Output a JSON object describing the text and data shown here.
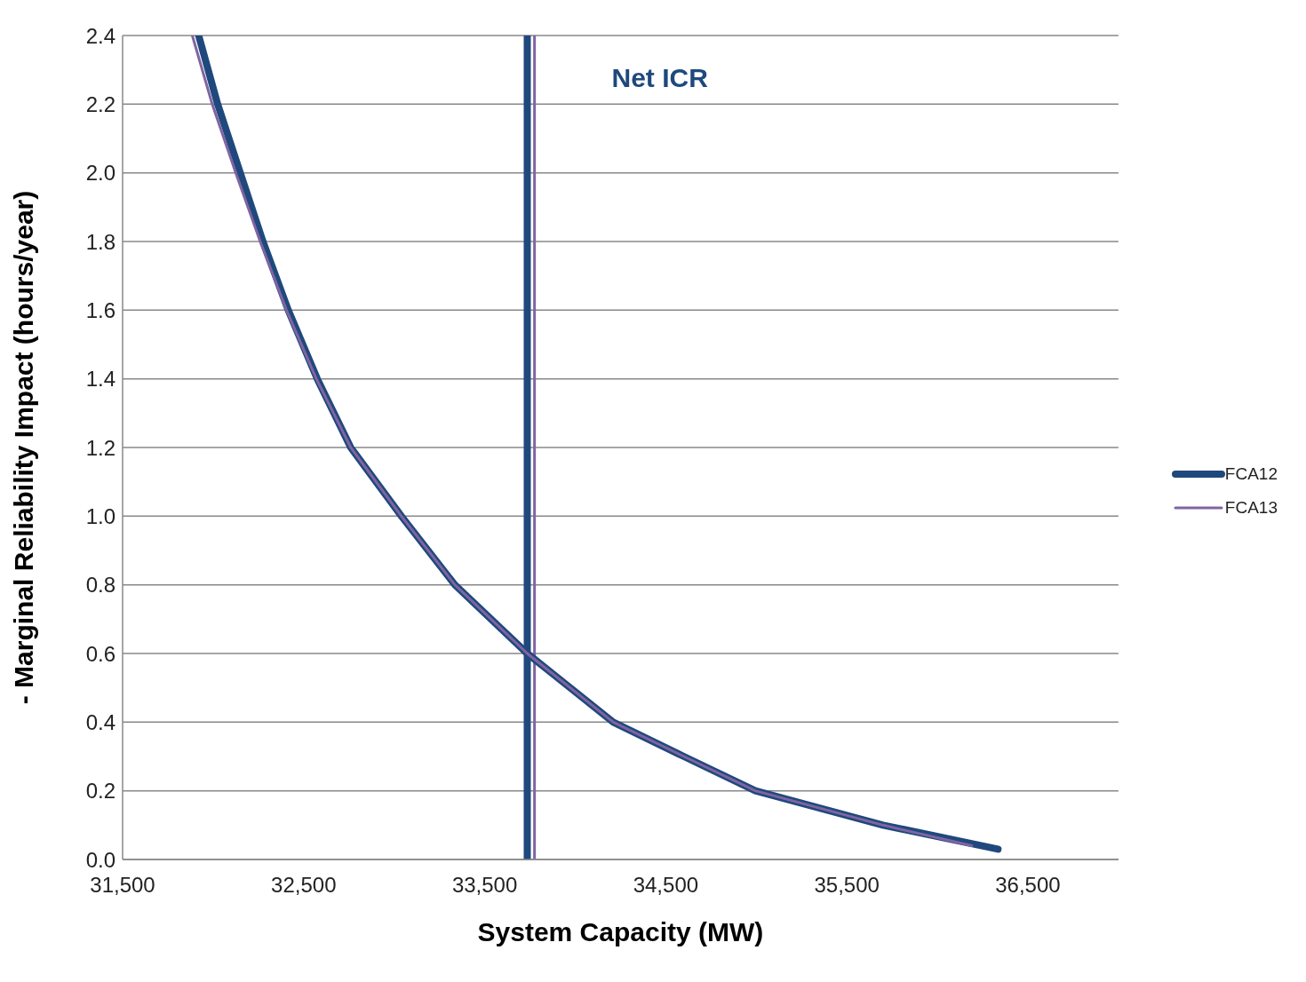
{
  "chart_data": {
    "type": "line",
    "xlabel": "System Capacity (MW)",
    "ylabel": "- Marginal Reliability Impact (hours/year)",
    "xlim": [
      31500,
      37000
    ],
    "xticks": [
      {
        "value": 31500,
        "label": "31,500"
      },
      {
        "value": 32500,
        "label": "32,500"
      },
      {
        "value": 33500,
        "label": "33,500"
      },
      {
        "value": 34500,
        "label": "34,500"
      },
      {
        "value": 35500,
        "label": "35,500"
      },
      {
        "value": 36500,
        "label": "36,500"
      }
    ],
    "ylim": [
      0,
      2.4
    ],
    "yticks": [
      {
        "value": 0,
        "label": "0.0"
      },
      {
        "value": 0.2,
        "label": "0.2"
      },
      {
        "value": 0.4,
        "label": "0.4"
      },
      {
        "value": 0.6,
        "label": "0.6"
      },
      {
        "value": 0.8,
        "label": "0.8"
      },
      {
        "value": 1,
        "label": "1.0"
      },
      {
        "value": 1.2,
        "label": "1.2"
      },
      {
        "value": 1.4,
        "label": "1.4"
      },
      {
        "value": 1.6,
        "label": "1.6"
      },
      {
        "value": 1.8,
        "label": "1.8"
      },
      {
        "value": 2,
        "label": "2.0"
      },
      {
        "value": 2.2,
        "label": "2.2"
      },
      {
        "value": 2.4,
        "label": "2.4"
      }
    ],
    "grid": "y",
    "legend": "right",
    "marker": "none",
    "line_style": "solid",
    "series": [
      {
        "name": "FCA12",
        "color": "#1f497d",
        "x": [
          31920,
          32025,
          32150,
          32275,
          32415,
          32575,
          32760,
          33040,
          33335,
          33735,
          34210,
          34600,
          34995,
          35700,
          36335
        ],
        "values": [
          2.4,
          2.2,
          2.0,
          1.8,
          1.6,
          1.4,
          1.2,
          1.0,
          0.8,
          0.6,
          0.4,
          0.3,
          0.2,
          0.1,
          0.03
        ]
      },
      {
        "name": "FCA13",
        "color": "#8064a2",
        "x": [
          31885,
          31995,
          32125,
          32260,
          32405,
          32570,
          32760,
          33040,
          33335,
          33735,
          34210,
          34600,
          34995,
          35700,
          36190
        ],
        "values": [
          2.4,
          2.2,
          2.0,
          1.8,
          1.6,
          1.4,
          1.2,
          1.0,
          0.8,
          0.6,
          0.4,
          0.3,
          0.2,
          0.1,
          0.04
        ]
      }
    ],
    "ref_lines": [
      {
        "axis": "x",
        "value": 33735,
        "label": "Net ICR",
        "color": "#1f497d"
      },
      {
        "axis": "x",
        "value": 33775,
        "color": "#8064a2"
      }
    ]
  }
}
